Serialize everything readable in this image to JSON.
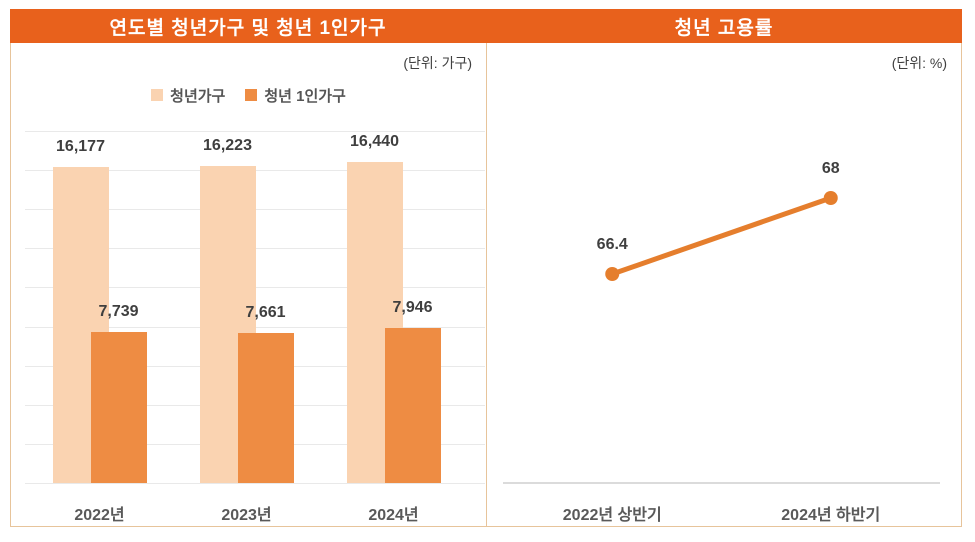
{
  "panels": {
    "left": {
      "title": "연도별 청년가구 및 청년 1인가구",
      "unit_label": "(단위: 가구)"
    },
    "right": {
      "title": "청년 고용률",
      "unit_label": "(단위: %)"
    }
  },
  "legend": [
    {
      "label": "청년가구",
      "color": "#FAD3B1"
    },
    {
      "label": "청년 1인가구",
      "color": "#EE8C43"
    }
  ],
  "colors": {
    "header_bg": "#E8611C",
    "panel_border": "#E7C49B",
    "gridline": "#E9E9E9",
    "axis_line": "#DBDBDB",
    "line_series": "#E57E2D",
    "value_text": "#3F3F3F",
    "category_text": "#595959"
  },
  "chart_data": [
    {
      "type": "bar",
      "title": "연도별 청년가구 및 청년 1인가구",
      "unit": "가구",
      "categories": [
        "2022년",
        "2023년",
        "2024년"
      ],
      "series": [
        {
          "name": "청년가구",
          "color": "#FAD3B1",
          "values": [
            16177,
            16223,
            16440
          ],
          "labels": [
            "16,177",
            "16,223",
            "16,440"
          ]
        },
        {
          "name": "청년 1인가구",
          "color": "#EE8C43",
          "values": [
            7739,
            7661,
            7946
          ],
          "labels": [
            "7,739",
            "7,661",
            "7,946"
          ]
        }
      ],
      "ylim": [
        0,
        18000
      ],
      "gridline_step": 2000,
      "grid": true,
      "legend_position": "top",
      "bar_style": "overlapping"
    },
    {
      "type": "line",
      "title": "청년 고용률",
      "unit": "%",
      "categories": [
        "2022년 상반기",
        "2024년 하반기"
      ],
      "values": [
        66.4,
        68
      ],
      "labels": [
        "66.4",
        "68"
      ],
      "ylim": [
        62,
        70
      ],
      "grid": false,
      "marker": "circle"
    }
  ]
}
